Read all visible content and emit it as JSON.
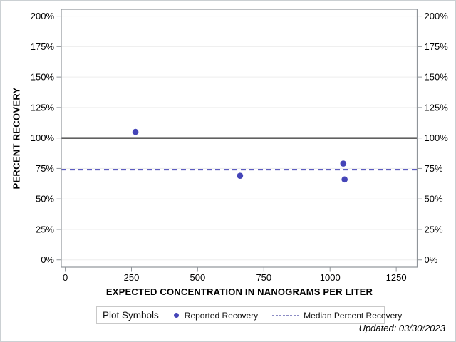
{
  "figure": {
    "updated_label": "Updated: 03/30/2023"
  },
  "chart_data": {
    "type": "scatter",
    "title": "",
    "xlabel": "EXPECTED CONCENTRATION IN NANOGRAMS PER LITER",
    "ylabel": "PERCENT RECOVERY",
    "x_range": [
      -15,
      1329
    ],
    "y_range": [
      -6,
      205.6
    ],
    "x_ticks": [
      0,
      250,
      500,
      750,
      1000,
      1250
    ],
    "y_ticks": [
      0,
      25,
      50,
      75,
      100,
      125,
      150,
      175,
      200
    ],
    "y_tick_suffix": "%",
    "grid": "horizontal-only",
    "axes_mirrored": true,
    "series": [
      {
        "name": "Reported Recovery",
        "type": "scatter",
        "marker": "filled-circle",
        "color": "#4545b8",
        "points": [
          {
            "x": 265,
            "y": 105
          },
          {
            "x": 660,
            "y": 69
          },
          {
            "x": 1050,
            "y": 79
          },
          {
            "x": 1055,
            "y": 66
          }
        ]
      }
    ],
    "reference_lines": [
      {
        "name": "100 Percent Reference",
        "y": 100,
        "style": "solid",
        "color": "#000000"
      },
      {
        "name": "Median Percent Recovery",
        "y": 74,
        "style": "dashed",
        "color": "#4545b8"
      }
    ],
    "legend": {
      "title": "Plot Symbols",
      "position": "bottom",
      "entries": [
        {
          "label": "Reported Recovery",
          "symbol": "filled-circle",
          "color": "#4545b8"
        },
        {
          "label": "Median Percent Recovery",
          "symbol": "dashed-line",
          "color": "#8c8cc4"
        }
      ]
    },
    "styles": {
      "frame_color": "#8f9499",
      "gridline_color": "#ededed",
      "tick_label_color": "#000000"
    }
  }
}
